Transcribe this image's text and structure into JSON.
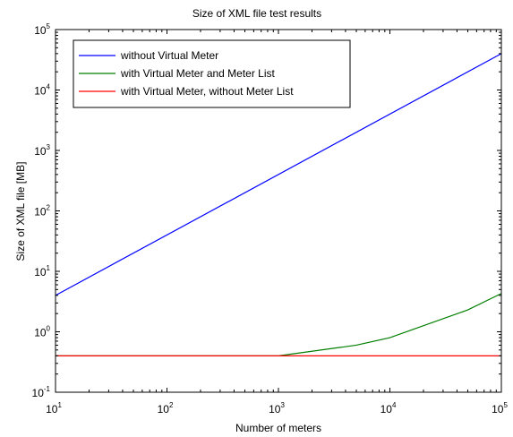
{
  "chart_data": {
    "type": "line",
    "title": "Size of XML file test results",
    "xlabel": "Number of meters",
    "ylabel": "Size of  XML file  [MB]",
    "x_scale": "log",
    "y_scale": "log",
    "xlim": [
      10,
      100000
    ],
    "ylim": [
      0.1,
      100000
    ],
    "x_ticks": [
      {
        "value": 10,
        "base": "10",
        "exp": "1"
      },
      {
        "value": 100,
        "base": "10",
        "exp": "2"
      },
      {
        "value": 1000,
        "base": "10",
        "exp": "3"
      },
      {
        "value": 10000,
        "base": "10",
        "exp": "4"
      },
      {
        "value": 100000,
        "base": "10",
        "exp": "5"
      }
    ],
    "y_ticks": [
      {
        "value": 0.1,
        "base": "10",
        "exp": "-1"
      },
      {
        "value": 1,
        "base": "10",
        "exp": "0"
      },
      {
        "value": 10,
        "base": "10",
        "exp": "1"
      },
      {
        "value": 100,
        "base": "10",
        "exp": "2"
      },
      {
        "value": 1000,
        "base": "10",
        "exp": "3"
      },
      {
        "value": 10000,
        "base": "10",
        "exp": "4"
      },
      {
        "value": 100000,
        "base": "10",
        "exp": "5"
      }
    ],
    "grid": false,
    "legend_position": "top-left",
    "series": [
      {
        "name": "without Virtual Meter",
        "color": "#0000ff",
        "x": [
          10,
          100000
        ],
        "y": [
          4,
          40000
        ]
      },
      {
        "name": "with Virtual Meter and Meter List",
        "color": "#007f00",
        "x": [
          10,
          1000,
          5000,
          10000,
          50000,
          100000
        ],
        "y": [
          0.4,
          0.4,
          0.6,
          0.8,
          2.3,
          4.3
        ]
      },
      {
        "name": "with Virtual Meter, without Meter List",
        "color": "#ff0000",
        "x": [
          10,
          100000
        ],
        "y": [
          0.4,
          0.4
        ]
      }
    ]
  }
}
